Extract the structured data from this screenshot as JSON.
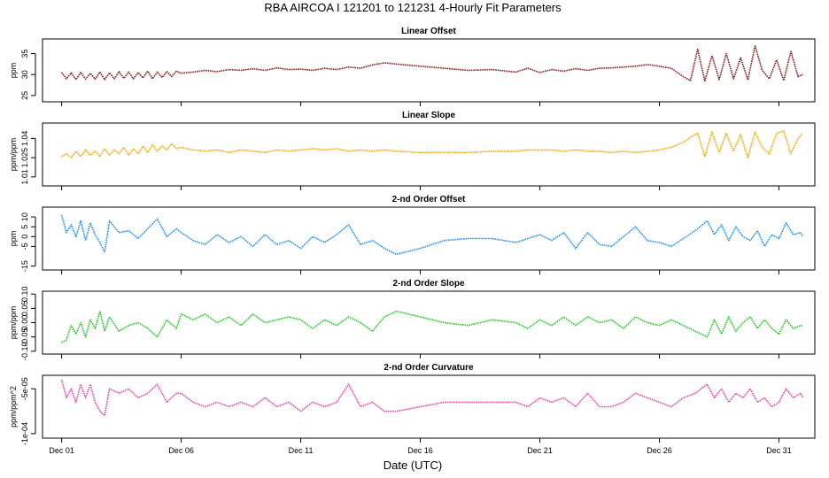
{
  "title": "RBA   AIRCOA I   121201 to 121231   4-Hourly Fit Parameters",
  "xlabel": "Date (UTC)",
  "x_ticks": [
    {
      "day": 1,
      "label": "Dec 01"
    },
    {
      "day": 6,
      "label": "Dec 06"
    },
    {
      "day": 11,
      "label": "Dec 11"
    },
    {
      "day": 16,
      "label": "Dec 16"
    },
    {
      "day": 21,
      "label": "Dec 21"
    },
    {
      "day": 26,
      "label": "Dec 26"
    },
    {
      "day": 31,
      "label": "Dec 31"
    }
  ],
  "chart_data": [
    {
      "type": "line",
      "title": "Linear Offset",
      "ylabel": "ppm",
      "ylim": [
        23.5,
        38.5
      ],
      "xlim": [
        0.2,
        32.5
      ],
      "color": "#8b1a1a",
      "y_ticks": [
        25,
        30,
        35
      ],
      "y_tick_labels": [
        "25",
        "30",
        "35"
      ],
      "x": [
        1.0,
        1.2,
        1.4,
        1.6,
        1.8,
        2.0,
        2.2,
        2.4,
        2.6,
        2.8,
        3.0,
        3.2,
        3.4,
        3.6,
        3.8,
        4.0,
        4.2,
        4.4,
        4.6,
        4.8,
        5.0,
        5.2,
        5.4,
        5.6,
        5.8,
        6.0,
        6.5,
        7.0,
        7.5,
        8.0,
        8.5,
        9.0,
        9.5,
        10.0,
        10.5,
        11.0,
        11.5,
        12.0,
        12.5,
        13.0,
        13.5,
        14.0,
        14.5,
        15.0,
        16.0,
        17.0,
        18.0,
        19.0,
        20.0,
        20.5,
        21.0,
        21.5,
        22.0,
        22.5,
        23.0,
        23.5,
        24.0,
        24.5,
        25.0,
        25.5,
        26.0,
        26.5,
        27.0,
        27.3,
        27.6,
        27.9,
        28.2,
        28.5,
        28.8,
        29.1,
        29.4,
        29.7,
        30.0,
        30.3,
        30.6,
        30.9,
        31.2,
        31.5,
        31.8,
        32.0
      ],
      "values": [
        30.5,
        29.0,
        30.4,
        28.8,
        30.5,
        28.9,
        30.3,
        28.9,
        30.6,
        28.8,
        30.4,
        29.0,
        30.7,
        29.1,
        30.6,
        29.0,
        30.5,
        29.2,
        30.8,
        29.0,
        30.6,
        29.3,
        30.7,
        29.5,
        30.8,
        30.3,
        30.6,
        31.0,
        30.7,
        31.2,
        31.0,
        31.4,
        31.0,
        31.6,
        31.2,
        31.3,
        31.0,
        31.5,
        31.2,
        31.8,
        31.5,
        32.3,
        32.8,
        32.5,
        32.0,
        31.5,
        31.0,
        31.2,
        30.6,
        31.5,
        30.5,
        31.2,
        30.8,
        31.4,
        31.0,
        31.5,
        31.6,
        31.8,
        32.0,
        32.4,
        32.0,
        31.5,
        29.5,
        28.6,
        36.0,
        28.5,
        34.5,
        28.8,
        35.0,
        29.0,
        34.0,
        28.7,
        36.8,
        31.0,
        29.0,
        33.5,
        28.6,
        35.5,
        29.5,
        30.0
      ]
    },
    {
      "type": "line",
      "title": "Linear Slope",
      "ylabel": "ppm/ppm",
      "ylim": [
        1.003,
        1.052
      ],
      "xlim": [
        0.2,
        32.5
      ],
      "color": "#ffa500",
      "y_ticks": [
        1.01,
        1.025,
        1.04
      ],
      "y_tick_labels": [
        "1.01",
        "1.025",
        "1.04"
      ],
      "x": [
        1.0,
        1.2,
        1.4,
        1.6,
        1.8,
        2.0,
        2.2,
        2.4,
        2.6,
        2.8,
        3.0,
        3.2,
        3.4,
        3.6,
        3.8,
        4.0,
        4.2,
        4.4,
        4.6,
        4.8,
        5.0,
        5.2,
        5.4,
        5.6,
        5.8,
        6.0,
        6.5,
        7.0,
        7.5,
        8.0,
        8.5,
        9.0,
        9.5,
        10.0,
        10.5,
        11.0,
        11.5,
        12.0,
        12.5,
        13.0,
        13.5,
        14.0,
        14.5,
        15.0,
        16.0,
        17.0,
        18.0,
        19.0,
        20.0,
        20.5,
        21.0,
        21.5,
        22.0,
        22.5,
        23.0,
        23.5,
        24.0,
        24.5,
        25.0,
        25.5,
        26.0,
        26.5,
        27.0,
        27.3,
        27.6,
        27.9,
        28.2,
        28.5,
        28.8,
        29.1,
        29.4,
        29.7,
        30.0,
        30.3,
        30.6,
        30.9,
        31.2,
        31.5,
        31.8,
        32.0
      ],
      "values": [
        1.026,
        1.028,
        1.025,
        1.03,
        1.026,
        1.031,
        1.027,
        1.03,
        1.026,
        1.032,
        1.027,
        1.031,
        1.028,
        1.033,
        1.027,
        1.032,
        1.028,
        1.034,
        1.029,
        1.035,
        1.03,
        1.034,
        1.031,
        1.036,
        1.032,
        1.033,
        1.031,
        1.03,
        1.031,
        1.029,
        1.031,
        1.03,
        1.029,
        1.031,
        1.03,
        1.031,
        1.032,
        1.031,
        1.032,
        1.03,
        1.031,
        1.03,
        1.031,
        1.03,
        1.029,
        1.029,
        1.029,
        1.03,
        1.03,
        1.031,
        1.031,
        1.031,
        1.03,
        1.031,
        1.03,
        1.03,
        1.029,
        1.03,
        1.029,
        1.03,
        1.031,
        1.033,
        1.037,
        1.041,
        1.044,
        1.026,
        1.045,
        1.029,
        1.044,
        1.03,
        1.043,
        1.025,
        1.045,
        1.033,
        1.028,
        1.044,
        1.046,
        1.028,
        1.04,
        1.044
      ]
    },
    {
      "type": "line",
      "title": "2-nd Order Offset",
      "ylabel": "ppm",
      "ylim": [
        -17,
        15
      ],
      "xlim": [
        0.2,
        32.5
      ],
      "color": "#1e90ff",
      "y_ticks": [
        -15,
        -5,
        0,
        5,
        10
      ],
      "y_tick_labels": [
        "-15",
        "-5",
        "0",
        "5",
        "10"
      ],
      "x": [
        1.0,
        1.2,
        1.4,
        1.6,
        1.8,
        2.0,
        2.2,
        2.4,
        2.6,
        2.8,
        3.0,
        3.4,
        3.8,
        4.2,
        4.6,
        5.0,
        5.4,
        5.8,
        6.0,
        6.5,
        7.0,
        7.5,
        8.0,
        8.5,
        9.0,
        9.5,
        10.0,
        10.5,
        11.0,
        11.5,
        12.0,
        12.5,
        13.0,
        13.5,
        14.0,
        14.5,
        15.0,
        16.0,
        17.0,
        18.0,
        19.0,
        20.0,
        20.5,
        21.0,
        21.5,
        22.0,
        22.5,
        23.0,
        23.5,
        24.0,
        24.5,
        25.0,
        25.5,
        26.0,
        26.5,
        27.0,
        27.5,
        28.0,
        28.3,
        28.6,
        28.9,
        29.2,
        29.5,
        29.8,
        30.1,
        30.4,
        30.7,
        31.0,
        31.3,
        31.6,
        31.9,
        32.0
      ],
      "values": [
        11,
        2,
        6,
        0,
        8,
        -2,
        7,
        1,
        -3,
        -8,
        8,
        2,
        3,
        -1,
        4,
        9,
        0,
        4,
        2,
        -2,
        -4,
        1,
        -3,
        0,
        -5,
        1,
        -4,
        -2,
        -6,
        0,
        -3,
        1,
        6,
        -4,
        -2,
        -6,
        -9,
        -6,
        -2,
        -1,
        -1,
        -3,
        -1,
        1,
        -2,
        2,
        -6,
        2,
        -4,
        -5,
        0,
        5,
        -2,
        -3,
        -5,
        -1,
        3,
        8,
        1,
        6,
        -2,
        5,
        0,
        -2,
        3,
        -5,
        1,
        -1,
        7,
        1,
        2,
        0
      ]
    },
    {
      "type": "line",
      "title": "2-nd Order Slope",
      "ylabel": "ppm/ppm",
      "ylim": [
        -0.11,
        0.11
      ],
      "xlim": [
        0.2,
        32.5
      ],
      "color": "#22cc22",
      "y_ticks": [
        -0.1,
        -0.05,
        0.0,
        0.05,
        0.1
      ],
      "y_tick_labels": [
        "-0.10",
        "-0.05",
        "0.00",
        "0.05",
        "0.10"
      ],
      "x": [
        1.0,
        1.2,
        1.4,
        1.6,
        1.8,
        2.0,
        2.2,
        2.4,
        2.6,
        2.8,
        3.0,
        3.4,
        3.8,
        4.2,
        4.6,
        5.0,
        5.4,
        5.8,
        6.0,
        6.5,
        7.0,
        7.5,
        8.0,
        8.5,
        9.0,
        9.5,
        10.0,
        10.5,
        11.0,
        11.5,
        12.0,
        12.5,
        13.0,
        13.5,
        14.0,
        14.5,
        15.0,
        16.0,
        17.0,
        18.0,
        19.0,
        20.0,
        20.5,
        21.0,
        21.5,
        22.0,
        22.5,
        23.0,
        23.5,
        24.0,
        24.5,
        25.0,
        25.5,
        26.0,
        26.5,
        27.0,
        27.5,
        28.0,
        28.3,
        28.6,
        28.9,
        29.2,
        29.5,
        29.8,
        30.1,
        30.4,
        30.7,
        31.0,
        31.3,
        31.6,
        31.9,
        32.0
      ],
      "values": [
        -0.07,
        -0.06,
        -0.01,
        -0.04,
        0.0,
        -0.05,
        0.01,
        -0.02,
        0.04,
        -0.03,
        0.02,
        -0.03,
        -0.01,
        0.0,
        -0.02,
        -0.05,
        0.01,
        -0.02,
        0.03,
        0.01,
        0.03,
        0.0,
        0.02,
        -0.01,
        0.03,
        0.0,
        0.01,
        0.02,
        0.01,
        -0.02,
        0.01,
        -0.01,
        0.02,
        0.0,
        -0.03,
        0.02,
        0.04,
        0.02,
        0.0,
        -0.01,
        0.01,
        0.0,
        -0.02,
        0.01,
        -0.01,
        0.02,
        -0.01,
        0.02,
        0.0,
        0.01,
        -0.02,
        0.02,
        0.0,
        -0.01,
        0.01,
        -0.01,
        -0.03,
        -0.05,
        0.01,
        -0.04,
        0.02,
        -0.03,
        0.0,
        0.02,
        -0.02,
        0.01,
        -0.02,
        -0.04,
        0.01,
        -0.02,
        -0.01,
        -0.01
      ]
    },
    {
      "type": "line",
      "title": "2-nd Order Curvature",
      "ylabel": "ppm/ppm^2",
      "ylim": [
        -0.000105,
        -3.5e-05
      ],
      "xlim": [
        0.2,
        32.5
      ],
      "color": "#ee44aa",
      "y_ticks": [
        -0.0001,
        -5e-05
      ],
      "y_tick_labels": [
        "-1e-04",
        "-5e-05"
      ],
      "x": [
        1.0,
        1.2,
        1.4,
        1.6,
        1.8,
        2.0,
        2.2,
        2.4,
        2.6,
        2.8,
        3.0,
        3.4,
        3.8,
        4.2,
        4.6,
        5.0,
        5.4,
        5.8,
        6.0,
        6.5,
        7.0,
        7.5,
        8.0,
        8.5,
        9.0,
        9.5,
        10.0,
        10.5,
        11.0,
        11.5,
        12.0,
        12.5,
        13.0,
        13.5,
        14.0,
        14.5,
        15.0,
        16.0,
        17.0,
        18.0,
        19.0,
        20.0,
        20.5,
        21.0,
        21.5,
        22.0,
        22.5,
        23.0,
        23.5,
        24.0,
        24.5,
        25.0,
        25.5,
        26.0,
        26.5,
        27.0,
        27.5,
        28.0,
        28.3,
        28.6,
        28.9,
        29.2,
        29.5,
        29.8,
        30.1,
        30.4,
        30.7,
        31.0,
        31.3,
        31.6,
        31.9,
        32.0
      ],
      "values": [
        -4e-05,
        -6e-05,
        -5e-05,
        -6.5e-05,
        -4.5e-05,
        -6e-05,
        -4.5e-05,
        -6.5e-05,
        -7.5e-05,
        -8e-05,
        -5e-05,
        -5.5e-05,
        -5e-05,
        -6e-05,
        -5.5e-05,
        -4.5e-05,
        -6.5e-05,
        -5.5e-05,
        -5.5e-05,
        -6.5e-05,
        -7e-05,
        -6.5e-05,
        -7e-05,
        -6.5e-05,
        -7e-05,
        -6e-05,
        -7e-05,
        -6.5e-05,
        -7.5e-05,
        -6.5e-05,
        -7e-05,
        -6.5e-05,
        -4.5e-05,
        -7e-05,
        -6.5e-05,
        -7.5e-05,
        -7.5e-05,
        -7e-05,
        -6.5e-05,
        -6.5e-05,
        -6.5e-05,
        -6.5e-05,
        -7e-05,
        -6e-05,
        -6.5e-05,
        -6e-05,
        -7e-05,
        -5.5e-05,
        -7e-05,
        -7e-05,
        -6.5e-05,
        -5.5e-05,
        -6e-05,
        -6.5e-05,
        -7e-05,
        -6e-05,
        -5.5e-05,
        -4.5e-05,
        -6e-05,
        -5e-05,
        -6.5e-05,
        -5.5e-05,
        -6e-05,
        -5e-05,
        -6.5e-05,
        -6e-05,
        -7e-05,
        -6.5e-05,
        -5e-05,
        -6e-05,
        -5.5e-05,
        -6e-05
      ]
    }
  ]
}
